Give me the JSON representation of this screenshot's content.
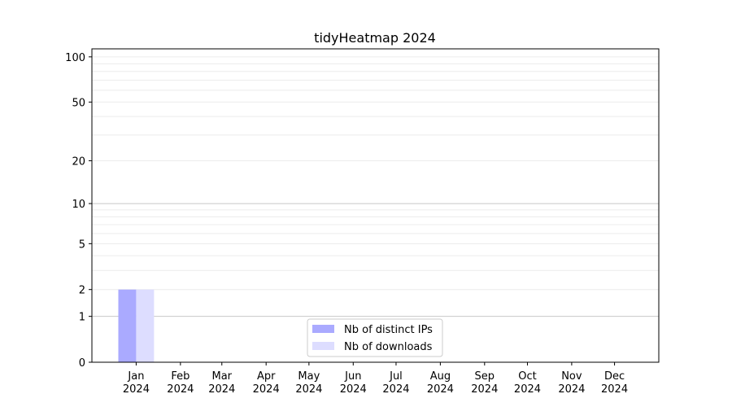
{
  "chart_data": {
    "type": "bar",
    "title": "tidyHeatmap 2024",
    "xlabel": "",
    "ylabel": "",
    "y_scale": "log(1+y)",
    "ylim": [
      0,
      113
    ],
    "y_ticks": [
      0,
      1,
      2,
      5,
      10,
      20,
      50,
      100
    ],
    "grid": true,
    "legend_position": "lower center",
    "categories": [
      "Jan\n2024",
      "Feb\n2024",
      "Mar\n2024",
      "Apr\n2024",
      "May\n2024",
      "Jun\n2024",
      "Jul\n2024",
      "Aug\n2024",
      "Sep\n2024",
      "Oct\n2024",
      "Nov\n2024",
      "Dec\n2024"
    ],
    "series": [
      {
        "name": "Nb of distinct IPs",
        "color": "#aaaaff",
        "values": [
          2,
          0,
          0,
          0,
          0,
          0,
          0,
          0,
          0,
          0,
          0,
          0
        ]
      },
      {
        "name": "Nb of downloads",
        "color": "#ddddff",
        "values": [
          2,
          0,
          0,
          0,
          0,
          0,
          0,
          0,
          0,
          0,
          0,
          0
        ]
      }
    ]
  }
}
